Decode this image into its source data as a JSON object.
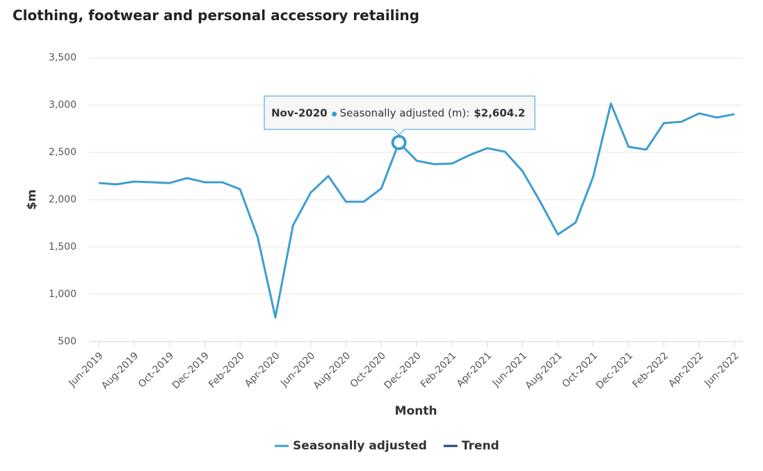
{
  "chart_data": {
    "type": "line",
    "title": "Clothing, footwear and personal accessory retailing",
    "x_label": "Month",
    "y_label": "$m",
    "categories": [
      "Jun-2019",
      null,
      "Aug-2019",
      null,
      "Oct-2019",
      null,
      "Dec-2019",
      null,
      "Feb-2020",
      null,
      "Apr-2020",
      null,
      "Jun-2020",
      null,
      "Aug-2020",
      null,
      "Oct-2020",
      "Nov-2020",
      "Dec-2020",
      null,
      "Feb-2021",
      null,
      "Apr-2021",
      null,
      "Jun-2021",
      null,
      "Aug-2021",
      null,
      "Oct-2021",
      null,
      "Dec-2021",
      null,
      "Feb-2022",
      null,
      "Apr-2022",
      null,
      "Jun-2022"
    ],
    "series": [
      {
        "name": "Seasonally adjusted",
        "color": "#3d9dd1",
        "values": [
          2176,
          2162,
          2191,
          2184,
          2176,
          2228,
          2184,
          2184,
          2110,
          1603,
          757,
          1728,
          2074,
          2250,
          1978,
          1978,
          2118,
          2604.2,
          2412,
          2375,
          2382,
          2471,
          2544,
          2507,
          2301,
          1978,
          1632,
          1757,
          2243,
          3015,
          2559,
          2529,
          2809,
          2824,
          2912,
          2868,
          2904
        ]
      },
      {
        "name": "Trend",
        "color": "#1f3f73",
        "values": [
          null,
          null,
          null,
          null,
          null,
          null,
          null,
          null,
          null,
          null,
          null,
          null,
          null,
          null,
          null,
          null,
          null,
          null,
          null,
          null,
          null,
          null,
          null,
          null,
          null,
          null,
          null,
          null,
          null,
          null,
          null,
          null,
          null,
          null,
          null,
          null,
          null
        ]
      }
    ],
    "ylim": [
      500,
      3500
    ],
    "yticks": [
      500,
      {
        "value": 1000,
        "label": "1,000"
      },
      {
        "value": 1500,
        "label": "1,500"
      },
      {
        "value": 2000,
        "label": "2,000"
      },
      {
        "value": 2500,
        "label": "2,500"
      },
      {
        "value": 3000,
        "label": "3,000"
      },
      {
        "value": 3500,
        "label": "3,500"
      }
    ],
    "grid": true,
    "legend": "bottom",
    "tooltip": {
      "series_label": "Seasonally adjusted (m):",
      "value_label": "$2,604.2"
    }
  }
}
